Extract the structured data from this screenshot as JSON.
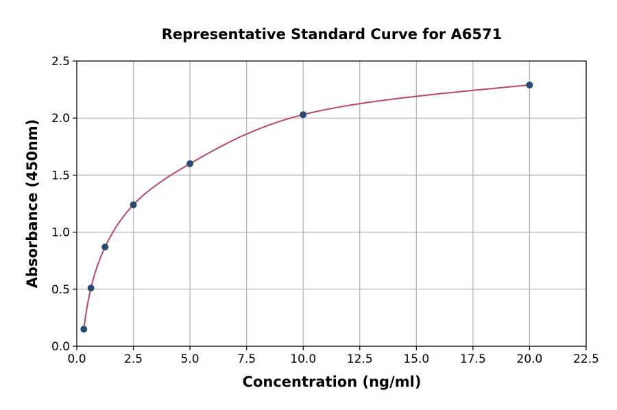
{
  "chart_data": {
    "type": "scatter",
    "title": "Representative Standard Curve for A6571",
    "xlabel": "Concentration (ng/ml)",
    "ylabel": "Absorbance (450nm)",
    "xlim": [
      0,
      22.5
    ],
    "ylim": [
      0,
      2.5
    ],
    "xticks": [
      "0.0",
      "2.5",
      "5.0",
      "7.5",
      "10.0",
      "12.5",
      "15.0",
      "17.5",
      "20.0",
      "22.5"
    ],
    "yticks": [
      "0.0",
      "0.5",
      "1.0",
      "1.5",
      "2.0",
      "2.5"
    ],
    "grid": true,
    "x": [
      0.3125,
      0.625,
      1.25,
      2.5,
      5,
      10,
      20
    ],
    "y": [
      0.15,
      0.51,
      0.87,
      1.24,
      1.6,
      2.03,
      2.29
    ],
    "point_color": "#2b4a6f",
    "curve_color": "#b5476b",
    "fit_curve": true
  }
}
